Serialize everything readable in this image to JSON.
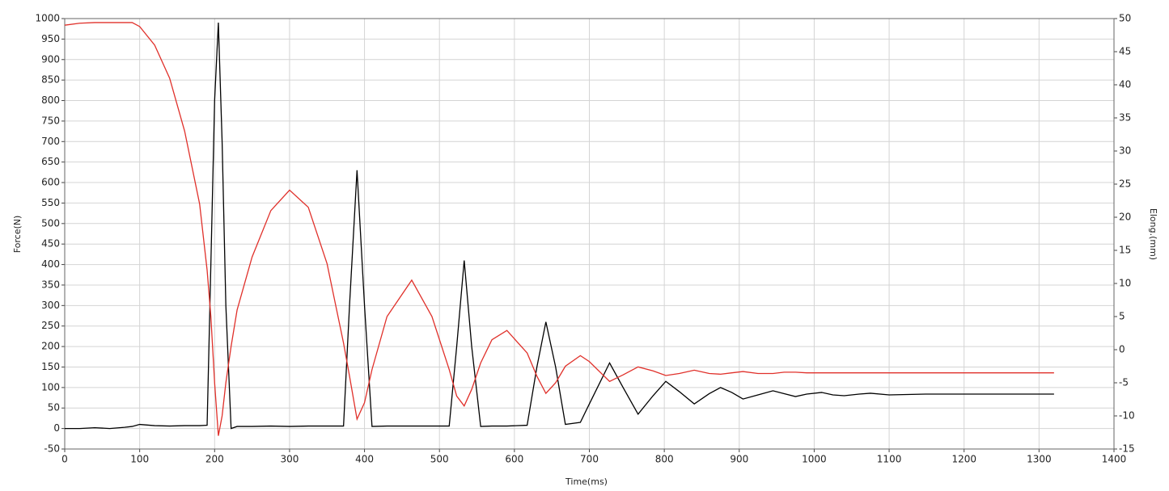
{
  "chart_data": {
    "type": "line",
    "x_label": "Time(ms)",
    "y_label": "Force(N)",
    "y2_label": "Elong.(mm)",
    "xlim": [
      0,
      1400
    ],
    "xticks": [
      0,
      100,
      200,
      300,
      400,
      500,
      600,
      700,
      800,
      900,
      1000,
      1100,
      1200,
      1300,
      1400
    ],
    "ylim": [
      -50,
      1000
    ],
    "yticks": [
      -50,
      0,
      50,
      100,
      150,
      200,
      250,
      300,
      350,
      400,
      450,
      500,
      550,
      600,
      650,
      700,
      750,
      800,
      850,
      900,
      950,
      1000
    ],
    "y2lim": [
      -15,
      50
    ],
    "y2ticks": [
      -15,
      -10,
      -5,
      0,
      5,
      10,
      15,
      20,
      25,
      30,
      35,
      40,
      45,
      50
    ],
    "grid": true,
    "x": [
      0,
      20,
      40,
      60,
      80,
      90,
      100,
      120,
      140,
      160,
      180,
      190,
      195,
      200,
      205,
      210,
      215,
      222,
      230,
      250,
      275,
      300,
      325,
      350,
      372,
      380,
      390,
      400,
      410,
      430,
      463,
      490,
      513,
      523,
      533,
      543,
      555,
      570,
      590,
      617,
      630,
      642,
      655,
      668,
      688,
      700,
      727,
      745,
      765,
      785,
      802,
      820,
      840,
      860,
      875,
      890,
      905,
      925,
      945,
      960,
      975,
      990,
      1010,
      1025,
      1040,
      1060,
      1075,
      1100,
      1150,
      1200,
      1250,
      1300,
      1320
    ],
    "series": [
      {
        "color": "#000000",
        "axis": "y",
        "values": [
          0,
          0,
          2,
          0,
          3,
          5,
          10,
          7,
          6,
          7,
          7,
          8,
          400,
          800,
          990,
          700,
          300,
          0,
          5,
          5,
          6,
          5,
          6,
          6,
          6,
          300,
          630,
          300,
          5,
          6,
          6,
          6,
          6,
          200,
          410,
          200,
          5,
          6,
          6,
          8,
          150,
          260,
          150,
          10,
          15,
          60,
          160,
          100,
          35,
          80,
          115,
          90,
          60,
          85,
          100,
          88,
          72,
          82,
          92,
          85,
          78,
          84,
          88,
          82,
          80,
          84,
          86,
          82,
          84,
          84,
          84,
          84,
          84
        ]
      },
      {
        "color": "#e0302a",
        "axis": "y2",
        "values": [
          49,
          49.3,
          49.4,
          49.4,
          49.4,
          49.4,
          48.8,
          46,
          41,
          33,
          22,
          12,
          5,
          -5,
          -13,
          -10,
          -5,
          0.5,
          6,
          14,
          21,
          24.1,
          21.5,
          13,
          1,
          -4,
          -10.5,
          -8,
          -3,
          5,
          10.5,
          5,
          -3,
          -7,
          -8.5,
          -6,
          -2,
          1.5,
          2.9,
          -0.5,
          -4,
          -6.6,
          -5,
          -2.5,
          -0.9,
          -1.8,
          -4.8,
          -3.8,
          -2.6,
          -3.2,
          -3.9,
          -3.6,
          -3.1,
          -3.6,
          -3.7,
          -3.5,
          -3.3,
          -3.6,
          -3.6,
          -3.4,
          -3.4,
          -3.5,
          -3.5,
          -3.5,
          -3.5,
          -3.5,
          -3.5,
          -3.5,
          -3.5,
          -3.5,
          -3.5,
          -3.5,
          -3.5
        ]
      }
    ]
  }
}
